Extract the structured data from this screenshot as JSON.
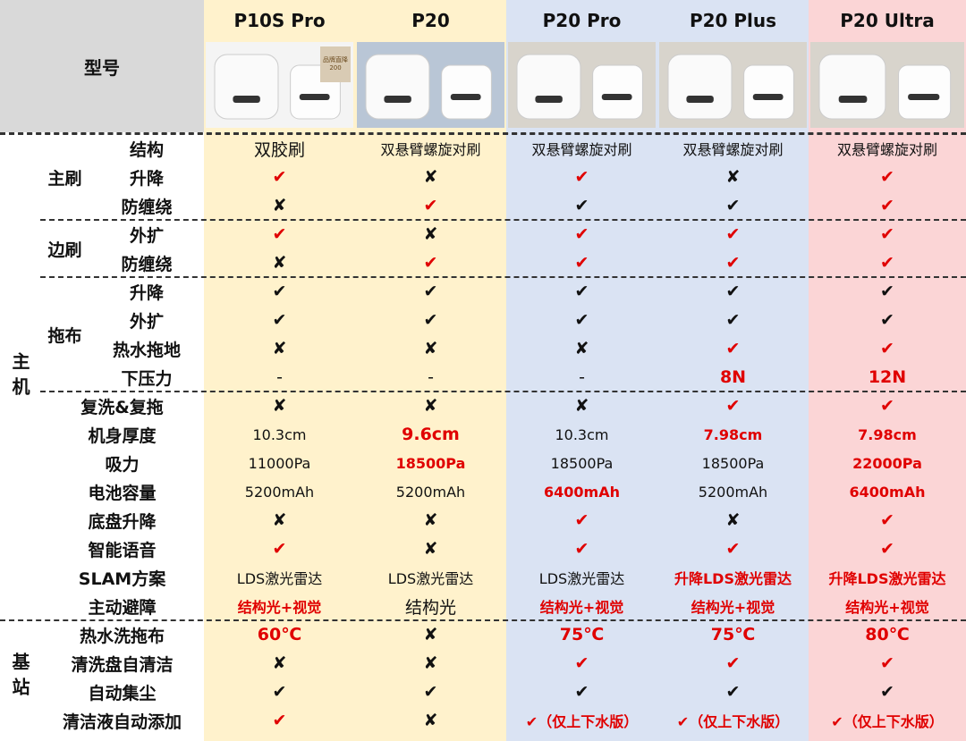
{
  "header_label": "型号",
  "models": [
    {
      "name": "P10S Pro",
      "color": "#fff2cc",
      "badge": "品牌直降200"
    },
    {
      "name": "P20",
      "color": "#fff2cc"
    },
    {
      "name": "P20 Pro",
      "color": "#dae3f3"
    },
    {
      "name": "P20 Plus",
      "color": "#dae3f3"
    },
    {
      "name": "P20 Ultra",
      "color": "#fbd5d6"
    }
  ],
  "sections": [
    {
      "label": "主机",
      "items": [
        {
          "label": "主刷",
          "rows": [
            {
              "label": "结构",
              "cells": [
                {
                  "text": "双胶刷",
                  "color": "#111"
                },
                {
                  "text": "双悬臂螺旋对刷",
                  "color": "#111"
                },
                {
                  "text": "双悬臂螺旋对刷",
                  "color": "#111"
                },
                {
                  "text": "双悬臂螺旋对刷",
                  "color": "#111"
                },
                {
                  "text": "双悬臂螺旋对刷",
                  "color": "#111"
                }
              ]
            },
            {
              "label": "升降",
              "cells": [
                {
                  "text": "✔",
                  "color": "#e00000"
                },
                {
                  "text": "✘",
                  "color": "#111"
                },
                {
                  "text": "✔",
                  "color": "#e00000"
                },
                {
                  "text": "✘",
                  "color": "#111"
                },
                {
                  "text": "✔",
                  "color": "#e00000"
                }
              ]
            },
            {
              "label": "防缠绕",
              "cells": [
                {
                  "text": "✘",
                  "color": "#111"
                },
                {
                  "text": "✔",
                  "color": "#e00000"
                },
                {
                  "text": "✔",
                  "color": "#111"
                },
                {
                  "text": "✔",
                  "color": "#111"
                },
                {
                  "text": "✔",
                  "color": "#e00000"
                }
              ]
            }
          ]
        },
        {
          "label": "边刷",
          "rows": [
            {
              "label": "外扩",
              "cells": [
                {
                  "text": "✔",
                  "color": "#e00000"
                },
                {
                  "text": "✘",
                  "color": "#111"
                },
                {
                  "text": "✔",
                  "color": "#e00000"
                },
                {
                  "text": "✔",
                  "color": "#e00000"
                },
                {
                  "text": "✔",
                  "color": "#e00000"
                }
              ]
            },
            {
              "label": "防缠绕",
              "cells": [
                {
                  "text": "✘",
                  "color": "#111"
                },
                {
                  "text": "✔",
                  "color": "#e00000"
                },
                {
                  "text": "✔",
                  "color": "#e00000"
                },
                {
                  "text": "✔",
                  "color": "#e00000"
                },
                {
                  "text": "✔",
                  "color": "#e00000"
                }
              ]
            }
          ]
        },
        {
          "label": "拖布",
          "rows": [
            {
              "label": "升降",
              "cells": [
                {
                  "text": "✔",
                  "color": "#111"
                },
                {
                  "text": "✔",
                  "color": "#111"
                },
                {
                  "text": "✔",
                  "color": "#111"
                },
                {
                  "text": "✔",
                  "color": "#111"
                },
                {
                  "text": "✔",
                  "color": "#111"
                }
              ]
            },
            {
              "label": "外扩",
              "cells": [
                {
                  "text": "✔",
                  "color": "#111"
                },
                {
                  "text": "✔",
                  "color": "#111"
                },
                {
                  "text": "✔",
                  "color": "#111"
                },
                {
                  "text": "✔",
                  "color": "#111"
                },
                {
                  "text": "✔",
                  "color": "#111"
                }
              ]
            },
            {
              "label": "热水拖地",
              "cells": [
                {
                  "text": "✘",
                  "color": "#111"
                },
                {
                  "text": "✘",
                  "color": "#111"
                },
                {
                  "text": "✘",
                  "color": "#111"
                },
                {
                  "text": "✔",
                  "color": "#e00000"
                },
                {
                  "text": "✔",
                  "color": "#e00000"
                }
              ]
            },
            {
              "label": "下压力",
              "cells": [
                {
                  "text": "-",
                  "color": "#111"
                },
                {
                  "text": "-",
                  "color": "#111"
                },
                {
                  "text": "-",
                  "color": "#111"
                },
                {
                  "text": "8N",
                  "color": "#e00000"
                },
                {
                  "text": "12N",
                  "color": "#e00000"
                }
              ]
            }
          ]
        },
        {
          "label": "复洗&复拖",
          "cells": [
            {
              "text": "✘",
              "color": "#111"
            },
            {
              "text": "✘",
              "color": "#111"
            },
            {
              "text": "✘",
              "color": "#111"
            },
            {
              "text": "✔",
              "color": "#e00000"
            },
            {
              "text": "✔",
              "color": "#e00000"
            }
          ]
        },
        {
          "label": "机身厚度",
          "cells": [
            {
              "text": "10.3cm",
              "color": "#111"
            },
            {
              "text": "9.6cm",
              "color": "#e00000"
            },
            {
              "text": "10.3cm",
              "color": "#111"
            },
            {
              "text": "7.98cm",
              "color": "#e00000"
            },
            {
              "text": "7.98cm",
              "color": "#e00000"
            }
          ]
        },
        {
          "label": "吸力",
          "cells": [
            {
              "text": "11000Pa",
              "color": "#111"
            },
            {
              "text": "18500Pa",
              "color": "#e00000"
            },
            {
              "text": "18500Pa",
              "color": "#111"
            },
            {
              "text": "18500Pa",
              "color": "#111"
            },
            {
              "text": "22000Pa",
              "color": "#e00000"
            }
          ]
        },
        {
          "label": "电池容量",
          "cells": [
            {
              "text": "5200mAh",
              "color": "#111"
            },
            {
              "text": "5200mAh",
              "color": "#111"
            },
            {
              "text": "6400mAh",
              "color": "#e00000"
            },
            {
              "text": "5200mAh",
              "color": "#111"
            },
            {
              "text": "6400mAh",
              "color": "#e00000"
            }
          ]
        },
        {
          "label": "底盘升降",
          "cells": [
            {
              "text": "✘",
              "color": "#111"
            },
            {
              "text": "✘",
              "color": "#111"
            },
            {
              "text": "✔",
              "color": "#e00000"
            },
            {
              "text": "✘",
              "color": "#111"
            },
            {
              "text": "✔",
              "color": "#e00000"
            }
          ]
        },
        {
          "label": "智能语音",
          "cells": [
            {
              "text": "✔",
              "color": "#e00000"
            },
            {
              "text": "✘",
              "color": "#111"
            },
            {
              "text": "✔",
              "color": "#e00000"
            },
            {
              "text": "✔",
              "color": "#e00000"
            },
            {
              "text": "✔",
              "color": "#e00000"
            }
          ]
        },
        {
          "label": "SLAM方案",
          "cells": [
            {
              "text": "LDS激光雷达",
              "color": "#111"
            },
            {
              "text": "LDS激光雷达",
              "color": "#111"
            },
            {
              "text": "LDS激光雷达",
              "color": "#111"
            },
            {
              "text": "升降LDS激光雷达",
              "color": "#e00000"
            },
            {
              "text": "升降LDS激光雷达",
              "color": "#e00000"
            }
          ]
        },
        {
          "label": "主动避障",
          "cells": [
            {
              "text": "结构光+视觉",
              "color": "#e00000"
            },
            {
              "text": "结构光",
              "color": "#111"
            },
            {
              "text": "结构光+视觉",
              "color": "#e00000"
            },
            {
              "text": "结构光+视觉",
              "color": "#e00000"
            },
            {
              "text": "结构光+视觉",
              "color": "#e00000"
            }
          ]
        }
      ]
    },
    {
      "label": "基站",
      "items": [
        {
          "label": "热水洗拖布",
          "cells": [
            {
              "text": "60℃",
              "color": "#e00000"
            },
            {
              "text": "✘",
              "color": "#111"
            },
            {
              "text": "75℃",
              "color": "#e00000"
            },
            {
              "text": "75℃",
              "color": "#e00000"
            },
            {
              "text": "80℃",
              "color": "#e00000"
            }
          ]
        },
        {
          "label": "清洗盘自清洁",
          "cells": [
            {
              "text": "✘",
              "color": "#111"
            },
            {
              "text": "✘",
              "color": "#111"
            },
            {
              "text": "✔",
              "color": "#e00000"
            },
            {
              "text": "✔",
              "color": "#e00000"
            },
            {
              "text": "✔",
              "color": "#e00000"
            }
          ]
        },
        {
          "label": "自动集尘",
          "cells": [
            {
              "text": "✔",
              "color": "#111"
            },
            {
              "text": "✔",
              "color": "#111"
            },
            {
              "text": "✔",
              "color": "#111"
            },
            {
              "text": "✔",
              "color": "#111"
            },
            {
              "text": "✔",
              "color": "#111"
            }
          ]
        },
        {
          "label": "清洁液自动添加",
          "cells": [
            {
              "text": "✔",
              "color": "#e00000"
            },
            {
              "text": "✘",
              "color": "#111"
            },
            {
              "text": "✔（仅上下水版）",
              "color": "#e00000"
            },
            {
              "text": "✔（仅上下水版）",
              "color": "#e00000"
            },
            {
              "text": "✔（仅上下水版）",
              "color": "#e00000"
            }
          ]
        }
      ]
    }
  ]
}
